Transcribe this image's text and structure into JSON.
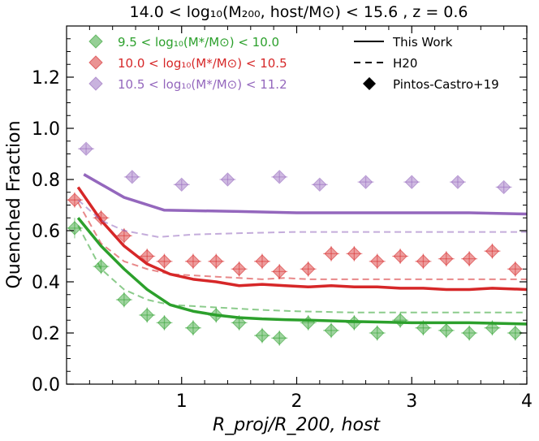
{
  "chart_data": {
    "type": "line",
    "title": "14.0 < log₁₀(M₂₀₀, host/M⊙) < 15.6 , z = 0.6",
    "xlabel": "R_proj/R_200, host",
    "ylabel": "Quenched Fraction",
    "xlim": [
      0.0,
      4.0
    ],
    "ylim": [
      0.0,
      1.4
    ],
    "xticks": [
      1,
      2,
      3,
      4
    ],
    "yticks": [
      0.0,
      0.2,
      0.4,
      0.6,
      0.8,
      1.0,
      1.2
    ],
    "xtick_labels": [
      "1",
      "2",
      "3",
      "4"
    ],
    "ytick_labels": [
      "0.0",
      "0.2",
      "0.4",
      "0.6",
      "0.8",
      "1.0",
      "1.2"
    ],
    "grid": false,
    "series": [
      {
        "key": "s1",
        "name": "9.5 < log₁₀(M*/M⊙) < 10.0",
        "color": "#2ca02c",
        "this_work": {
          "x": [
            0.1,
            0.3,
            0.5,
            0.7,
            0.9,
            1.1,
            1.3,
            1.5,
            1.7,
            1.9,
            2.1,
            2.5,
            3.0,
            3.5,
            4.0
          ],
          "y": [
            0.65,
            0.54,
            0.45,
            0.37,
            0.31,
            0.285,
            0.27,
            0.26,
            0.255,
            0.252,
            0.25,
            0.245,
            0.24,
            0.24,
            0.235
          ]
        },
        "h20": {
          "x": [
            0.1,
            0.3,
            0.5,
            0.7,
            0.9,
            1.1,
            1.3,
            1.5,
            1.7,
            2.0,
            2.5,
            3.0,
            3.5,
            4.0
          ],
          "y": [
            0.62,
            0.45,
            0.37,
            0.33,
            0.31,
            0.305,
            0.3,
            0.295,
            0.29,
            0.285,
            0.28,
            0.28,
            0.28,
            0.28
          ]
        },
        "pintos_castro": {
          "x": [
            0.07,
            0.3,
            0.5,
            0.7,
            0.85,
            1.1,
            1.3,
            1.5,
            1.7,
            1.85,
            2.1,
            2.3,
            2.5,
            2.7,
            2.9,
            3.1,
            3.3,
            3.5,
            3.7,
            3.9
          ],
          "y": [
            0.61,
            0.46,
            0.33,
            0.27,
            0.24,
            0.22,
            0.27,
            0.24,
            0.19,
            0.18,
            0.24,
            0.21,
            0.24,
            0.2,
            0.25,
            0.22,
            0.21,
            0.2,
            0.22,
            0.2
          ],
          "yerr": [
            0.04,
            0.03,
            0.03,
            0.03,
            0.03,
            0.03,
            0.03,
            0.03,
            0.03,
            0.03,
            0.03,
            0.03,
            0.03,
            0.03,
            0.03,
            0.03,
            0.03,
            0.03,
            0.03,
            0.03
          ]
        }
      },
      {
        "key": "s2",
        "name": "10.0 < log₁₀(M*/M⊙) < 10.5",
        "color": "#d62728",
        "this_work": {
          "x": [
            0.1,
            0.3,
            0.5,
            0.7,
            0.9,
            1.1,
            1.3,
            1.5,
            1.7,
            1.9,
            2.1,
            2.3,
            2.5,
            2.7,
            2.9,
            3.1,
            3.3,
            3.5,
            3.7,
            4.0
          ],
          "y": [
            0.77,
            0.64,
            0.54,
            0.47,
            0.43,
            0.41,
            0.4,
            0.385,
            0.39,
            0.385,
            0.38,
            0.385,
            0.38,
            0.38,
            0.375,
            0.375,
            0.37,
            0.37,
            0.375,
            0.37
          ]
        },
        "h20": {
          "x": [
            0.1,
            0.3,
            0.5,
            0.7,
            0.9,
            1.1,
            1.3,
            1.5,
            1.7,
            1.9,
            2.1,
            2.5,
            3.0,
            3.5,
            4.0
          ],
          "y": [
            0.71,
            0.55,
            0.48,
            0.45,
            0.43,
            0.425,
            0.42,
            0.415,
            0.41,
            0.415,
            0.41,
            0.41,
            0.41,
            0.41,
            0.41
          ]
        },
        "pintos_castro": {
          "x": [
            0.07,
            0.3,
            0.5,
            0.7,
            0.85,
            1.1,
            1.3,
            1.5,
            1.7,
            1.85,
            2.1,
            2.3,
            2.5,
            2.7,
            2.9,
            3.1,
            3.3,
            3.5,
            3.7,
            3.9
          ],
          "y": [
            0.72,
            0.65,
            0.58,
            0.5,
            0.48,
            0.48,
            0.48,
            0.45,
            0.48,
            0.44,
            0.45,
            0.51,
            0.51,
            0.48,
            0.5,
            0.48,
            0.49,
            0.49,
            0.52,
            0.45
          ],
          "yerr": [
            0.03,
            0.03,
            0.03,
            0.03,
            0.03,
            0.03,
            0.03,
            0.03,
            0.03,
            0.03,
            0.03,
            0.03,
            0.03,
            0.03,
            0.03,
            0.03,
            0.03,
            0.03,
            0.03,
            0.03
          ]
        }
      },
      {
        "key": "s3",
        "name": "10.5 < log₁₀(M*/M⊙) < 11.2",
        "color": "#9467bd",
        "this_work": {
          "x": [
            0.15,
            0.5,
            0.85,
            1.5,
            2.0,
            2.5,
            3.0,
            3.5,
            4.0
          ],
          "y": [
            0.82,
            0.73,
            0.68,
            0.675,
            0.67,
            0.67,
            0.67,
            0.67,
            0.665
          ]
        },
        "h20": {
          "x": [
            0.1,
            0.3,
            0.5,
            0.8,
            1.1,
            1.5,
            2.0,
            2.5,
            3.0,
            3.5,
            4.0
          ],
          "y": [
            0.72,
            0.64,
            0.6,
            0.575,
            0.585,
            0.59,
            0.595,
            0.595,
            0.595,
            0.595,
            0.595
          ]
        },
        "pintos_castro": {
          "x": [
            0.17,
            0.57,
            1.0,
            1.4,
            1.85,
            2.2,
            2.6,
            3.0,
            3.4,
            3.8
          ],
          "y": [
            0.92,
            0.81,
            0.78,
            0.8,
            0.81,
            0.78,
            0.79,
            0.79,
            0.79,
            0.77
          ],
          "yerr": [
            0.02,
            0.02,
            0.02,
            0.02,
            0.02,
            0.02,
            0.02,
            0.02,
            0.02,
            0.02
          ]
        }
      }
    ],
    "legend_style": [
      {
        "label": "This Work",
        "style": "solid"
      },
      {
        "label": "H20",
        "style": "dashed"
      },
      {
        "label": "Pintos-Castro+19",
        "style": "diamond"
      }
    ],
    "legend_placement": "top"
  }
}
